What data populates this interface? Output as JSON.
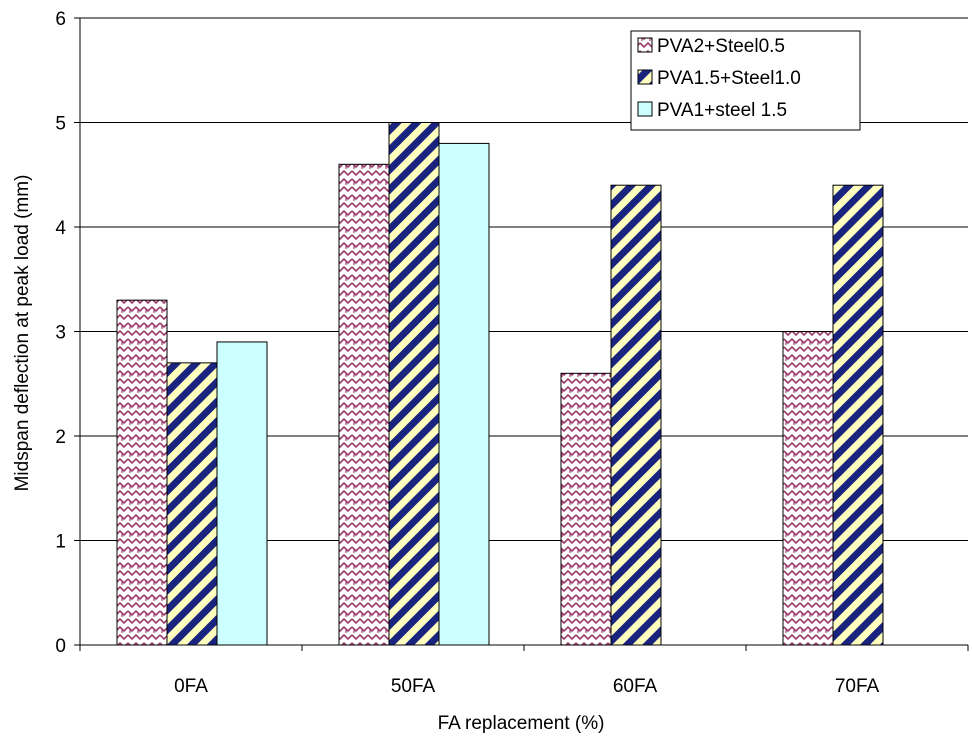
{
  "chart_data": {
    "type": "bar",
    "categories": [
      "0FA",
      "50FA",
      "60FA",
      "70FA"
    ],
    "series": [
      {
        "name": "PVA2+Steel0.5",
        "values": [
          3.3,
          4.6,
          2.6,
          3.0
        ],
        "pattern": "zigzag",
        "color": "#9b3a6b"
      },
      {
        "name": "PVA1.5+Steel1.0",
        "values": [
          2.7,
          5.0,
          4.4,
          4.4
        ],
        "pattern": "diagonal-stripes",
        "color": "#1a237e",
        "color2": "#ffffc0"
      },
      {
        "name": "PVA1+steel 1.5",
        "values": [
          2.9,
          4.8,
          null,
          null
        ],
        "pattern": "solid",
        "color": "#ccffff"
      }
    ],
    "xlabel": "FA replacement (%)",
    "ylabel": "Midspan deflection at peak load (mm)",
    "ylim": [
      0,
      6
    ],
    "yticks": [
      0,
      1,
      2,
      3,
      4,
      5,
      6
    ],
    "grid": true,
    "legend_position": "top-right"
  }
}
